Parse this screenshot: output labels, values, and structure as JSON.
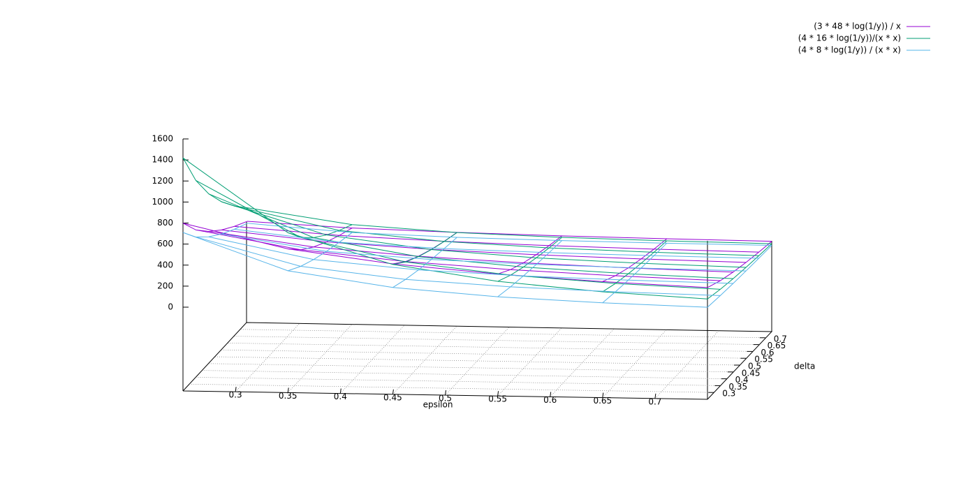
{
  "chart_data": {
    "type": "surface",
    "xlabel": "epsilon",
    "ylabel": "delta",
    "x": [
      0.25,
      0.35,
      0.45,
      0.55,
      0.65,
      0.75
    ],
    "y": [
      0.25,
      0.35,
      0.45,
      0.55,
      0.65,
      0.75
    ],
    "xlim": [
      0.25,
      0.75
    ],
    "ylim": [
      0.25,
      0.75
    ],
    "zlim": [
      0,
      1600
    ],
    "xticks": [
      0.3,
      0.35,
      0.4,
      0.45,
      0.5,
      0.55,
      0.6,
      0.65,
      0.7
    ],
    "yticks": [
      0.3,
      0.35,
      0.4,
      0.45,
      0.5,
      0.55,
      0.6,
      0.65,
      0.7
    ],
    "zticks": [
      0,
      200,
      400,
      600,
      800,
      1000,
      1200,
      1400,
      1600
    ],
    "legend": "top-right",
    "series": [
      {
        "name": "(3 * 48 * log(1/y)) / x",
        "color": "#9400d3",
        "values": [
          [
            798.5,
            570.4,
            443.6,
            363.0,
            307.1,
            266.2
          ],
          [
            604.7,
            431.9,
            335.9,
            274.9,
            232.6,
            201.6
          ],
          [
            459.9,
            328.5,
            255.5,
            209.1,
            176.9,
            153.3
          ],
          [
            344.3,
            245.9,
            191.3,
            156.5,
            132.4,
            114.8
          ],
          [
            248.2,
            177.3,
            137.9,
            112.8,
            95.4,
            82.7
          ],
          [
            165.7,
            118.4,
            92.1,
            75.3,
            63.7,
            55.2
          ]
        ]
      },
      {
        "name": "(4 * 16 * log(1/y))/(x * x)",
        "color": "#009e73",
        "values": [
          [
            1419.6,
            724.2,
            438.1,
            293.3,
            210.0,
            157.7
          ],
          [
            1075.0,
            548.5,
            331.8,
            222.1,
            159.0,
            119.5
          ],
          [
            817.6,
            417.1,
            252.3,
            168.9,
            121.0,
            90.8
          ],
          [
            612.2,
            312.3,
            188.9,
            126.5,
            90.6,
            68.0
          ],
          [
            441.1,
            225.1,
            136.1,
            91.1,
            65.3,
            49.0
          ],
          [
            294.6,
            150.3,
            90.9,
            60.9,
            43.6,
            32.7
          ]
        ]
      },
      {
        "name": "(4 * 8 * log(1/y)) / (x * x)",
        "color": "#56b4e9",
        "values": [
          [
            709.8,
            362.1,
            219.1,
            146.6,
            105.0,
            78.9
          ],
          [
            537.5,
            274.3,
            165.9,
            111.1,
            79.5,
            59.7
          ],
          [
            408.8,
            208.6,
            126.2,
            84.5,
            60.5,
            45.4
          ],
          [
            306.1,
            156.2,
            94.5,
            63.2,
            45.3,
            34.0
          ],
          [
            220.6,
            112.5,
            68.1,
            45.6,
            32.6,
            24.5
          ],
          [
            147.3,
            75.2,
            45.5,
            30.4,
            21.8,
            16.3
          ]
        ]
      }
    ]
  }
}
